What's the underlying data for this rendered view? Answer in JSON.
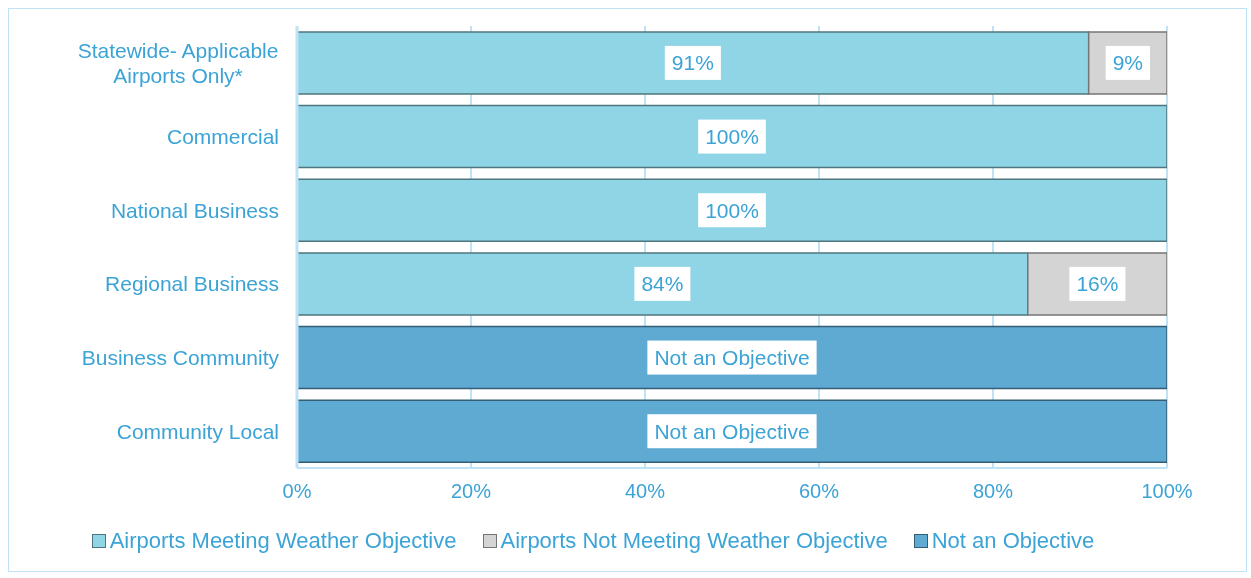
{
  "chart_data": {
    "type": "bar",
    "orientation": "horizontal",
    "stacked": true,
    "categories": [
      "Statewide- Applicable Airports Only*",
      "Commercial",
      "National Business",
      "Regional Business",
      "Business Community",
      "Community Local"
    ],
    "series": [
      {
        "name": "Airports Meeting Weather Objective",
        "color": "#8fd5e6",
        "values": [
          91,
          100,
          100,
          84,
          0,
          0
        ],
        "value_labels": [
          "91%",
          "100%",
          "100%",
          "84%",
          null,
          null
        ]
      },
      {
        "name": "Airports Not Meeting Weather Objective",
        "color": "#d4d4d4",
        "values": [
          9,
          0,
          0,
          16,
          0,
          0
        ],
        "value_labels": [
          "9%",
          null,
          null,
          "16%",
          null,
          null
        ]
      },
      {
        "name": "Not an Objective",
        "color": "#5eaad2",
        "values": [
          0,
          0,
          0,
          0,
          100,
          100
        ],
        "value_labels": [
          null,
          null,
          null,
          null,
          "Not an Objective",
          "Not an Objective"
        ]
      }
    ],
    "xlim": [
      0,
      100
    ],
    "xticks": [
      {
        "value": 0,
        "label": "0%"
      },
      {
        "value": 20,
        "label": "20%"
      },
      {
        "value": 40,
        "label": "40%"
      },
      {
        "value": 60,
        "label": "60%"
      },
      {
        "value": 80,
        "label": "80%"
      },
      {
        "value": 100,
        "label": "100%"
      }
    ],
    "grid": "x",
    "legend": "bottom"
  }
}
